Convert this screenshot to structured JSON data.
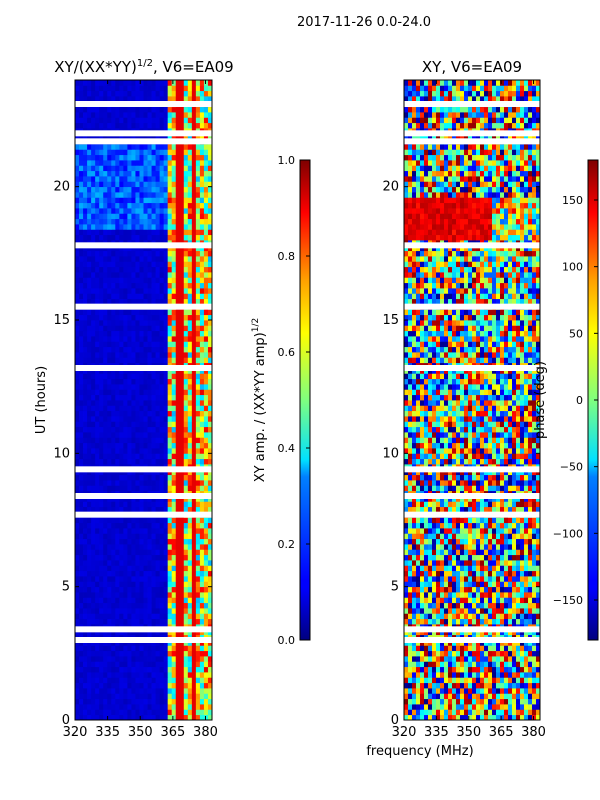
{
  "figure_title": "2017-11-26 0.0-24.0",
  "chart_data": [
    {
      "type": "heatmap",
      "title_text": "XY/(XX*YY)",
      "title_exponent": "1/2",
      "title_suffix": ", V6=EA09",
      "xlabel": "",
      "ylabel": "UT (hours)",
      "xlim": [
        320,
        383
      ],
      "ylim": [
        0,
        24
      ],
      "xticks": [
        320,
        335,
        350,
        365,
        380
      ],
      "yticks": [
        0,
        5,
        10,
        15,
        20
      ],
      "colorbar": {
        "label_text": "XY amp. / (XX*YY amp)",
        "label_exponent": "1/2",
        "range": [
          0.0,
          1.0
        ],
        "ticks": [
          "0.0",
          "0.2",
          "0.4",
          "0.6",
          "0.8",
          "1.0"
        ],
        "colormap": "jet"
      },
      "blank_rows_ut": [
        3.0,
        3.4,
        7.7,
        8.4,
        9.4,
        13.2,
        15.5,
        17.8,
        21.7,
        22.0,
        23.1
      ]
    },
    {
      "type": "heatmap",
      "title_text": "XY, V6=EA09",
      "xlabel": "frequency (MHz)",
      "ylabel": "",
      "xlim": [
        320,
        383
      ],
      "ylim": [
        0,
        24
      ],
      "xticks": [
        320,
        335,
        350,
        365,
        380
      ],
      "yticks": [
        0,
        5,
        10,
        15,
        20
      ],
      "colorbar": {
        "label_text": "phase (deg)",
        "range": [
          -180,
          180
        ],
        "ticks": [
          "150",
          "100",
          "50",
          "0",
          "−50",
          "−100",
          "−150"
        ],
        "colormap": "jet"
      },
      "blank_rows_ut": [
        3.0,
        3.4,
        7.7,
        8.4,
        9.4,
        13.2,
        15.5,
        17.8,
        21.7,
        22.0,
        23.1
      ]
    }
  ]
}
